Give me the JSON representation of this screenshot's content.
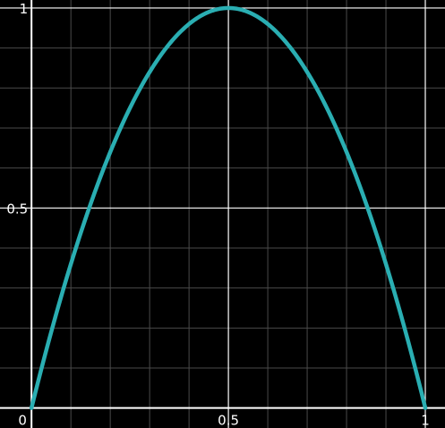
{
  "chart_data": {
    "type": "line",
    "title": "",
    "xlabel": "",
    "ylabel": "",
    "xlim": [
      -0.08,
      1.05
    ],
    "ylim": [
      -0.05,
      1.02
    ],
    "grid": true,
    "major_step": 0.5,
    "minor_step": 0.1,
    "colors": {
      "background": "#000000",
      "curve": "#2aaeb2",
      "major_grid": "#ffffff",
      "minor_grid": "#4a4a4a"
    },
    "x_ticks": [
      {
        "value": 0,
        "label": "0"
      },
      {
        "value": 0.5,
        "label": "0.5"
      },
      {
        "value": 1,
        "label": "1"
      }
    ],
    "y_ticks": [
      {
        "value": 0.5,
        "label": "0.5"
      },
      {
        "value": 1,
        "label": "1"
      }
    ],
    "series": [
      {
        "x": [
          0,
          0.05,
          0.1,
          0.15,
          0.2,
          0.25,
          0.3,
          0.35,
          0.4,
          0.45,
          0.5,
          0.55,
          0.6,
          0.65,
          0.7,
          0.75,
          0.8,
          0.85,
          0.9,
          0.95,
          1
        ],
        "y": [
          0,
          0.19,
          0.36,
          0.51,
          0.64,
          0.75,
          0.84,
          0.91,
          0.96,
          0.99,
          1,
          0.99,
          0.96,
          0.91,
          0.84,
          0.75,
          0.64,
          0.51,
          0.36,
          0.19,
          0
        ]
      }
    ]
  }
}
